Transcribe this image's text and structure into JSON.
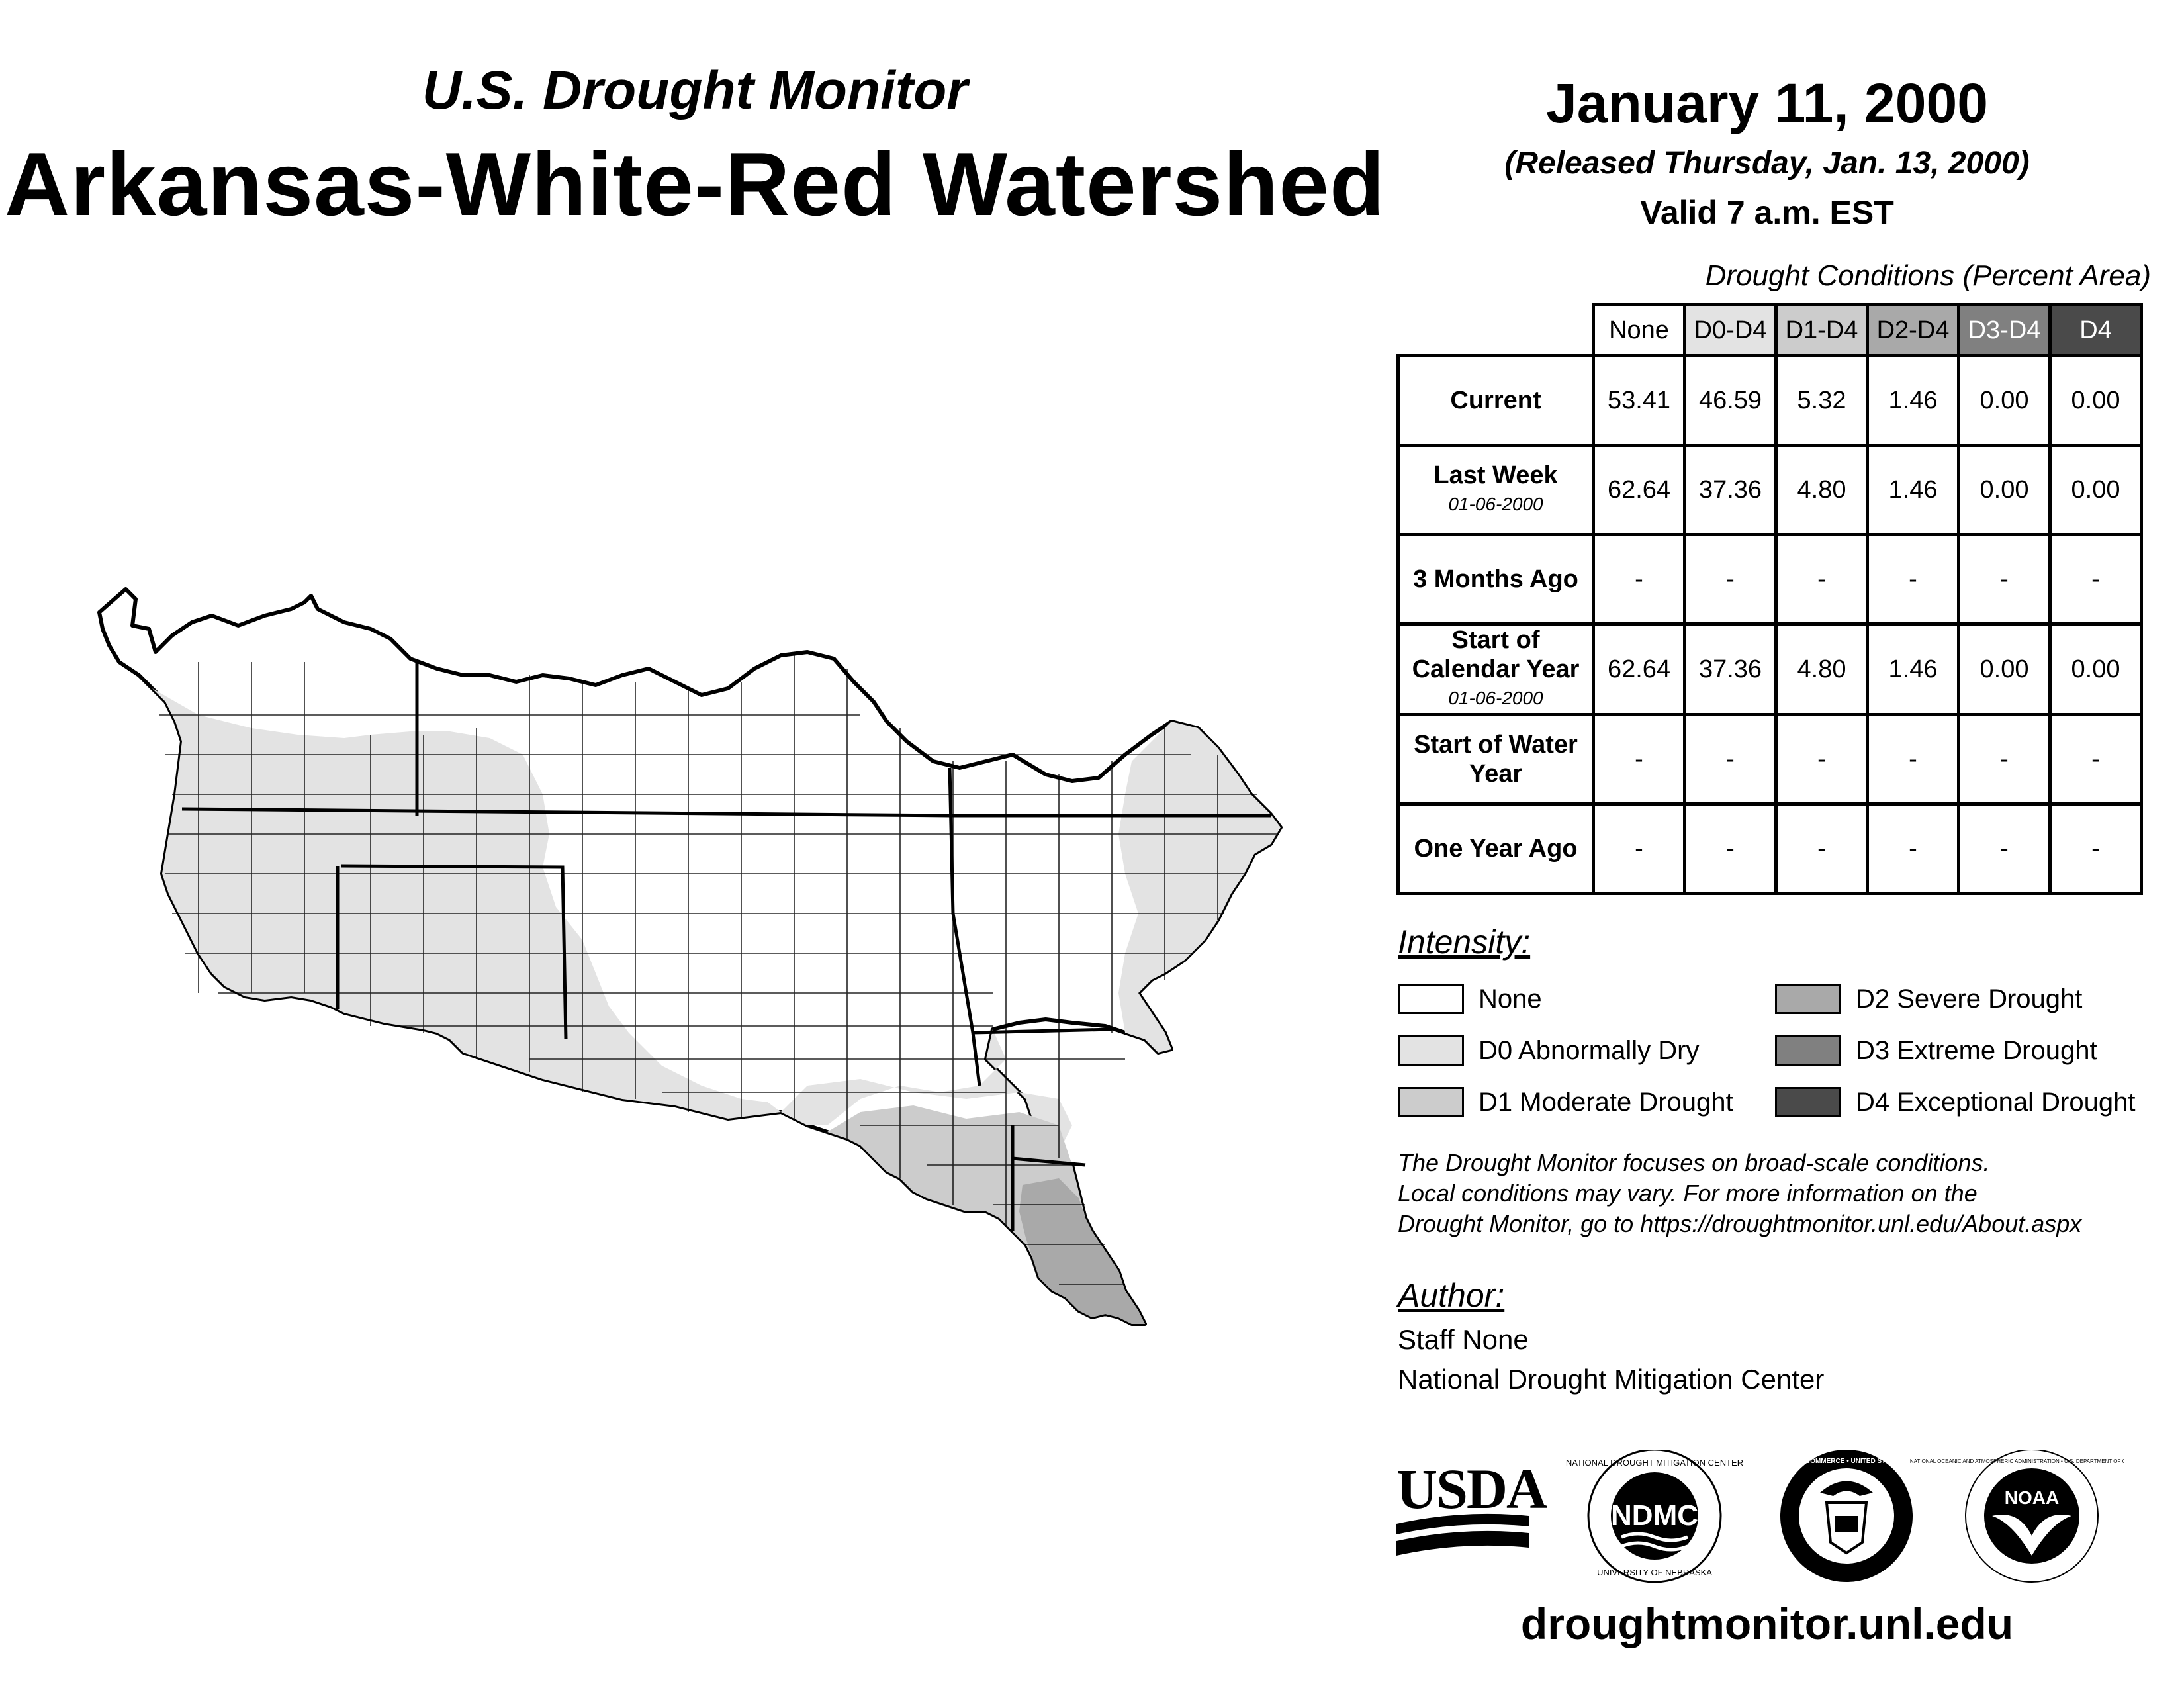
{
  "header": {
    "program_title": "U.S. Drought Monitor",
    "region_title": "Arkansas-White-Red Watershed",
    "map_date": "January 11, 2000",
    "release_line": "(Released Thursday, Jan. 13, 2000)",
    "valid_line": "Valid 7 a.m. EST"
  },
  "table": {
    "caption": "Drought Conditions (Percent Area)",
    "columns": [
      "None",
      "D0-D4",
      "D1-D4",
      "D2-D4",
      "D3-D4",
      "D4"
    ],
    "rows": [
      {
        "label": "Current",
        "sub": "",
        "values": [
          "53.41",
          "46.59",
          "5.32",
          "1.46",
          "0.00",
          "0.00"
        ]
      },
      {
        "label": "Last Week",
        "sub": "01-06-2000",
        "values": [
          "62.64",
          "37.36",
          "4.80",
          "1.46",
          "0.00",
          "0.00"
        ]
      },
      {
        "label": "3 Months Ago",
        "sub": "",
        "values": [
          "-",
          "-",
          "-",
          "-",
          "-",
          "-"
        ]
      },
      {
        "label": "Start of Calendar Year",
        "sub": "01-06-2000",
        "values": [
          "62.64",
          "37.36",
          "4.80",
          "1.46",
          "0.00",
          "0.00"
        ]
      },
      {
        "label": "Start of Water Year",
        "sub": "",
        "values": [
          "-",
          "-",
          "-",
          "-",
          "-",
          "-"
        ]
      },
      {
        "label": "One Year Ago",
        "sub": "",
        "values": [
          "-",
          "-",
          "-",
          "-",
          "-",
          "-"
        ]
      }
    ]
  },
  "legend": {
    "heading": "Intensity:",
    "items": [
      {
        "label": "None",
        "color": "#ffffff"
      },
      {
        "label": "D0 Abnormally Dry",
        "color": "#e3e3e3"
      },
      {
        "label": "D1 Moderate Drought",
        "color": "#cccccc"
      },
      {
        "label": "D2 Severe Drought",
        "color": "#a9a9a9"
      },
      {
        "label": "D3 Extreme Drought",
        "color": "#808080"
      },
      {
        "label": "D4 Exceptional Drought",
        "color": "#4a4a4a"
      }
    ]
  },
  "note": {
    "line1": "The Drought Monitor focuses on broad-scale conditions.",
    "line2": "Local conditions may vary. For more information on the",
    "line3": "Drought Monitor, go to https://droughtmonitor.unl.edu/About.aspx"
  },
  "author": {
    "heading": "Author:",
    "name": "Staff None",
    "org": "National Drought Mitigation Center"
  },
  "logos": {
    "usda": "USDA",
    "ndmc": "NDMC",
    "ndmc_ring_top": "NATIONAL DROUGHT MITIGATION CENTER",
    "ndmc_ring_bottom": "UNIVERSITY OF NEBRASKA",
    "doc_ring": "DEPARTMENT OF COMMERCE • UNITED STATES OF AMERICA",
    "noaa": "NOAA",
    "noaa_ring": "NATIONAL OCEANIC AND ATMOSPHERIC ADMINISTRATION • U.S. DEPARTMENT OF COMMERCE"
  },
  "website": "droughtmonitor.unl.edu",
  "map": {
    "colors": {
      "none": "#ffffff",
      "d0": "#e3e3e3",
      "d1": "#cccccc",
      "d2": "#a9a9a9",
      "border": "#000000"
    }
  }
}
